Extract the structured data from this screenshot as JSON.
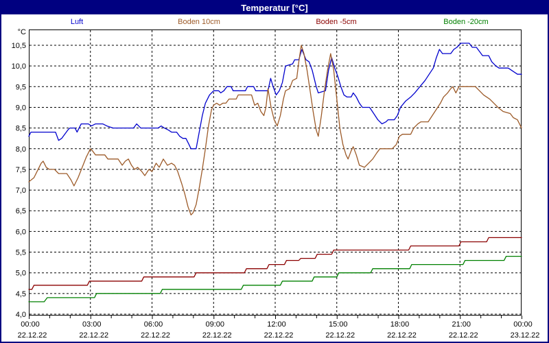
{
  "window": {
    "title": "Temperatur [°C]"
  },
  "colors": {
    "title_bar_bg": "#000080",
    "title_text": "#ffffff",
    "outer_border": "#000080",
    "plot_border": "#000000",
    "grid": "#000000",
    "axis_text": "#000000",
    "background": "#ffffff"
  },
  "chart_data": {
    "type": "line",
    "title": "Temperatur [°C]",
    "ylabel": "°C",
    "xlabel": "",
    "grid": "dashed",
    "legend_position": "top",
    "ylim": [
      4.0,
      10.9
    ],
    "xlim_hours": [
      0,
      24
    ],
    "minor_tick_every_hours": 1,
    "y_tick_values": [
      10.5,
      10.0,
      9.5,
      9.0,
      8.5,
      8.0,
      7.5,
      7.0,
      6.5,
      6.0,
      5.5,
      5.0,
      4.5,
      4.0
    ],
    "y_ticks": [
      "10,5",
      "10,0",
      "9,5",
      "9,0",
      "8,5",
      "8,0",
      "7,5",
      "7,0",
      "6,5",
      "6,0",
      "5,5",
      "5,0",
      "4,5",
      "4,0"
    ],
    "x_tick_hours": [
      0,
      3,
      6,
      9,
      12,
      15,
      18,
      21,
      24
    ],
    "x_ticks": [
      {
        "time": "00:00",
        "date": "22.12.22"
      },
      {
        "time": "03:00",
        "date": "22.12.22"
      },
      {
        "time": "06:00",
        "date": "22.12.22"
      },
      {
        "time": "09:00",
        "date": "22.12.22"
      },
      {
        "time": "12:00",
        "date": "22.12.22"
      },
      {
        "time": "15:00",
        "date": "22.12.22"
      },
      {
        "time": "18:00",
        "date": "22.12.22"
      },
      {
        "time": "21:00",
        "date": "22.12.22"
      },
      {
        "time": "00:00",
        "date": "23.12.22"
      }
    ],
    "series": [
      {
        "name": "Luft",
        "color": "#0000cd",
        "points": [
          [
            0,
            8.3
          ],
          [
            0.1,
            8.4
          ],
          [
            1.3,
            8.4
          ],
          [
            1.45,
            8.2
          ],
          [
            1.6,
            8.25
          ],
          [
            1.9,
            8.45
          ],
          [
            2.0,
            8.5
          ],
          [
            2.25,
            8.5
          ],
          [
            2.35,
            8.4
          ],
          [
            2.55,
            8.6
          ],
          [
            2.9,
            8.6
          ],
          [
            3.05,
            8.55
          ],
          [
            3.25,
            8.6
          ],
          [
            3.6,
            8.6
          ],
          [
            3.8,
            8.55
          ],
          [
            4.1,
            8.5
          ],
          [
            5.1,
            8.5
          ],
          [
            5.25,
            8.6
          ],
          [
            5.45,
            8.5
          ],
          [
            6.3,
            8.5
          ],
          [
            6.45,
            8.55
          ],
          [
            6.6,
            8.5
          ],
          [
            6.8,
            8.45
          ],
          [
            6.95,
            8.4
          ],
          [
            7.2,
            8.4
          ],
          [
            7.35,
            8.3
          ],
          [
            7.5,
            8.25
          ],
          [
            7.65,
            8.25
          ],
          [
            7.8,
            8.1
          ],
          [
            7.9,
            8.0
          ],
          [
            8.15,
            8.0
          ],
          [
            8.3,
            8.4
          ],
          [
            8.45,
            8.8
          ],
          [
            8.6,
            9.1
          ],
          [
            8.8,
            9.3
          ],
          [
            9.0,
            9.4
          ],
          [
            9.25,
            9.4
          ],
          [
            9.35,
            9.35
          ],
          [
            9.5,
            9.4
          ],
          [
            9.65,
            9.5
          ],
          [
            9.85,
            9.5
          ],
          [
            9.95,
            9.4
          ],
          [
            10.55,
            9.4
          ],
          [
            10.65,
            9.5
          ],
          [
            10.95,
            9.5
          ],
          [
            11.05,
            9.4
          ],
          [
            11.65,
            9.4
          ],
          [
            11.78,
            9.7
          ],
          [
            11.9,
            9.5
          ],
          [
            12.05,
            9.3
          ],
          [
            12.2,
            9.4
          ],
          [
            12.35,
            9.6
          ],
          [
            12.5,
            10.0
          ],
          [
            12.85,
            10.05
          ],
          [
            12.95,
            10.15
          ],
          [
            13.15,
            10.15
          ],
          [
            13.3,
            10.4
          ],
          [
            13.5,
            10.15
          ],
          [
            13.65,
            10.1
          ],
          [
            13.8,
            9.9
          ],
          [
            14.0,
            9.5
          ],
          [
            14.1,
            9.35
          ],
          [
            14.45,
            9.4
          ],
          [
            14.6,
            9.9
          ],
          [
            14.75,
            10.2
          ],
          [
            14.9,
            9.95
          ],
          [
            15.05,
            9.75
          ],
          [
            15.2,
            9.5
          ],
          [
            15.35,
            9.3
          ],
          [
            15.5,
            9.25
          ],
          [
            15.7,
            9.25
          ],
          [
            15.8,
            9.35
          ],
          [
            15.95,
            9.25
          ],
          [
            16.1,
            9.1
          ],
          [
            16.25,
            9.0
          ],
          [
            16.6,
            9.0
          ],
          [
            16.8,
            8.85
          ],
          [
            17.0,
            8.7
          ],
          [
            17.2,
            8.6
          ],
          [
            17.4,
            8.65
          ],
          [
            17.5,
            8.7
          ],
          [
            17.8,
            8.7
          ],
          [
            17.95,
            8.8
          ],
          [
            18.1,
            9.0
          ],
          [
            18.35,
            9.15
          ],
          [
            18.6,
            9.25
          ],
          [
            18.8,
            9.35
          ],
          [
            19.05,
            9.5
          ],
          [
            19.3,
            9.65
          ],
          [
            19.5,
            9.8
          ],
          [
            19.7,
            9.95
          ],
          [
            19.85,
            10.2
          ],
          [
            20.0,
            10.4
          ],
          [
            20.15,
            10.3
          ],
          [
            20.55,
            10.3
          ],
          [
            20.7,
            10.4
          ],
          [
            20.85,
            10.45
          ],
          [
            21.05,
            10.55
          ],
          [
            21.45,
            10.55
          ],
          [
            21.6,
            10.45
          ],
          [
            21.8,
            10.45
          ],
          [
            21.95,
            10.35
          ],
          [
            22.1,
            10.25
          ],
          [
            22.4,
            10.25
          ],
          [
            22.55,
            10.1
          ],
          [
            22.75,
            10.0
          ],
          [
            22.9,
            9.95
          ],
          [
            23.35,
            9.95
          ],
          [
            23.5,
            9.9
          ],
          [
            23.65,
            9.85
          ],
          [
            23.8,
            9.8
          ],
          [
            24,
            9.8
          ]
        ]
      },
      {
        "name": "Boden 10cm",
        "color": "#9c5a28",
        "points": [
          [
            0,
            7.2
          ],
          [
            0.25,
            7.3
          ],
          [
            0.45,
            7.5
          ],
          [
            0.6,
            7.65
          ],
          [
            0.7,
            7.7
          ],
          [
            0.85,
            7.55
          ],
          [
            1.0,
            7.5
          ],
          [
            1.25,
            7.5
          ],
          [
            1.45,
            7.4
          ],
          [
            1.85,
            7.4
          ],
          [
            2.05,
            7.25
          ],
          [
            2.2,
            7.1
          ],
          [
            2.4,
            7.3
          ],
          [
            2.6,
            7.55
          ],
          [
            2.8,
            7.8
          ],
          [
            3.0,
            8.0
          ],
          [
            3.1,
            7.95
          ],
          [
            3.25,
            7.85
          ],
          [
            3.7,
            7.85
          ],
          [
            3.85,
            7.75
          ],
          [
            4.35,
            7.75
          ],
          [
            4.55,
            7.6
          ],
          [
            4.7,
            7.7
          ],
          [
            4.85,
            7.75
          ],
          [
            5.0,
            7.6
          ],
          [
            5.15,
            7.5
          ],
          [
            5.3,
            7.55
          ],
          [
            5.5,
            7.45
          ],
          [
            5.65,
            7.35
          ],
          [
            5.85,
            7.5
          ],
          [
            6.0,
            7.45
          ],
          [
            6.2,
            7.65
          ],
          [
            6.35,
            7.55
          ],
          [
            6.55,
            7.75
          ],
          [
            6.75,
            7.6
          ],
          [
            6.95,
            7.65
          ],
          [
            7.1,
            7.6
          ],
          [
            7.25,
            7.45
          ],
          [
            7.45,
            7.15
          ],
          [
            7.6,
            6.9
          ],
          [
            7.75,
            6.6
          ],
          [
            7.9,
            6.4
          ],
          [
            8.0,
            6.45
          ],
          [
            8.15,
            6.65
          ],
          [
            8.3,
            7.05
          ],
          [
            8.45,
            7.5
          ],
          [
            8.6,
            8.0
          ],
          [
            8.75,
            8.55
          ],
          [
            8.9,
            8.95
          ],
          [
            9.0,
            9.05
          ],
          [
            9.15,
            9.1
          ],
          [
            9.3,
            9.05
          ],
          [
            9.45,
            9.1
          ],
          [
            9.6,
            9.1
          ],
          [
            9.75,
            9.2
          ],
          [
            10.1,
            9.2
          ],
          [
            10.2,
            9.3
          ],
          [
            10.85,
            9.3
          ],
          [
            11.0,
            9.05
          ],
          [
            11.15,
            9.1
          ],
          [
            11.3,
            8.9
          ],
          [
            11.45,
            8.8
          ],
          [
            11.55,
            9.0
          ],
          [
            11.65,
            9.45
          ],
          [
            11.8,
            9.0
          ],
          [
            11.95,
            8.7
          ],
          [
            12.1,
            8.55
          ],
          [
            12.25,
            8.8
          ],
          [
            12.4,
            9.2
          ],
          [
            12.5,
            9.4
          ],
          [
            12.7,
            9.45
          ],
          [
            12.85,
            9.65
          ],
          [
            13.05,
            9.7
          ],
          [
            13.15,
            10.1
          ],
          [
            13.27,
            10.5
          ],
          [
            13.4,
            10.3
          ],
          [
            13.55,
            9.9
          ],
          [
            13.7,
            9.4
          ],
          [
            13.85,
            8.9
          ],
          [
            14.0,
            8.45
          ],
          [
            14.1,
            8.3
          ],
          [
            14.25,
            8.8
          ],
          [
            14.4,
            9.4
          ],
          [
            14.55,
            9.9
          ],
          [
            14.7,
            10.3
          ],
          [
            14.85,
            9.9
          ],
          [
            15.0,
            9.2
          ],
          [
            15.15,
            8.5
          ],
          [
            15.3,
            8.1
          ],
          [
            15.45,
            7.85
          ],
          [
            15.55,
            7.75
          ],
          [
            15.7,
            7.95
          ],
          [
            15.8,
            8.05
          ],
          [
            15.95,
            7.85
          ],
          [
            16.1,
            7.6
          ],
          [
            16.35,
            7.55
          ],
          [
            16.55,
            7.65
          ],
          [
            16.75,
            7.75
          ],
          [
            16.95,
            7.9
          ],
          [
            17.1,
            8.0
          ],
          [
            17.7,
            8.0
          ],
          [
            17.9,
            8.1
          ],
          [
            18.05,
            8.3
          ],
          [
            18.2,
            8.35
          ],
          [
            18.6,
            8.35
          ],
          [
            18.75,
            8.5
          ],
          [
            18.95,
            8.6
          ],
          [
            19.1,
            8.65
          ],
          [
            19.45,
            8.65
          ],
          [
            19.65,
            8.8
          ],
          [
            19.85,
            8.95
          ],
          [
            20.05,
            9.1
          ],
          [
            20.2,
            9.25
          ],
          [
            20.4,
            9.35
          ],
          [
            20.55,
            9.45
          ],
          [
            20.65,
            9.5
          ],
          [
            20.8,
            9.35
          ],
          [
            20.95,
            9.5
          ],
          [
            21.75,
            9.5
          ],
          [
            21.95,
            9.4
          ],
          [
            22.15,
            9.3
          ],
          [
            22.45,
            9.2
          ],
          [
            22.65,
            9.1
          ],
          [
            22.85,
            9.0
          ],
          [
            23.1,
            8.9
          ],
          [
            23.45,
            8.85
          ],
          [
            23.6,
            8.75
          ],
          [
            23.8,
            8.7
          ],
          [
            23.9,
            8.6
          ],
          [
            24,
            8.5
          ]
        ]
      },
      {
        "name": "Boden -5cm",
        "color": "#8b0000",
        "points": [
          [
            0,
            4.6
          ],
          [
            0.15,
            4.6
          ],
          [
            0.25,
            4.7
          ],
          [
            2.85,
            4.7
          ],
          [
            2.95,
            4.8
          ],
          [
            5.5,
            4.8
          ],
          [
            5.6,
            4.9
          ],
          [
            8.05,
            4.9
          ],
          [
            8.15,
            5.0
          ],
          [
            10.5,
            5.0
          ],
          [
            10.6,
            5.1
          ],
          [
            11.6,
            5.1
          ],
          [
            11.7,
            5.2
          ],
          [
            12.45,
            5.2
          ],
          [
            12.55,
            5.3
          ],
          [
            13.15,
            5.3
          ],
          [
            13.25,
            5.35
          ],
          [
            13.95,
            5.35
          ],
          [
            14.05,
            5.45
          ],
          [
            14.75,
            5.45
          ],
          [
            14.85,
            5.55
          ],
          [
            18.5,
            5.55
          ],
          [
            18.6,
            5.65
          ],
          [
            20.95,
            5.65
          ],
          [
            21.05,
            5.75
          ],
          [
            22.3,
            5.75
          ],
          [
            22.4,
            5.85
          ],
          [
            24,
            5.85
          ]
        ]
      },
      {
        "name": "Boden -20cm",
        "color": "#008000",
        "points": [
          [
            0,
            4.3
          ],
          [
            0.75,
            4.3
          ],
          [
            0.9,
            4.4
          ],
          [
            3.2,
            4.4
          ],
          [
            3.3,
            4.5
          ],
          [
            6.4,
            4.5
          ],
          [
            6.5,
            4.6
          ],
          [
            10.35,
            4.6
          ],
          [
            10.45,
            4.7
          ],
          [
            12.25,
            4.7
          ],
          [
            12.35,
            4.8
          ],
          [
            13.8,
            4.8
          ],
          [
            13.9,
            4.9
          ],
          [
            15.0,
            4.9
          ],
          [
            15.1,
            5.0
          ],
          [
            16.65,
            5.0
          ],
          [
            16.75,
            5.1
          ],
          [
            18.55,
            5.1
          ],
          [
            18.65,
            5.2
          ],
          [
            21.15,
            5.2
          ],
          [
            21.25,
            5.3
          ],
          [
            23.15,
            5.3
          ],
          [
            23.25,
            5.4
          ],
          [
            24,
            5.4
          ]
        ]
      }
    ]
  }
}
